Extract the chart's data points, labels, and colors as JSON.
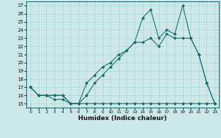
{
  "xlabel": "Humidex (Indice chaleur)",
  "bg_color": "#cce8e8",
  "grid_color": "#aad4d4",
  "line_color": "#1a6b6b",
  "xlim": [
    -0.5,
    23.5
  ],
  "ylim": [
    14.5,
    27.5
  ],
  "xticks": [
    0,
    1,
    2,
    3,
    4,
    5,
    6,
    7,
    8,
    9,
    10,
    11,
    12,
    13,
    14,
    15,
    16,
    17,
    18,
    19,
    20,
    21,
    22,
    23
  ],
  "yticks": [
    15,
    16,
    17,
    18,
    19,
    20,
    21,
    22,
    23,
    24,
    25,
    26,
    27
  ],
  "line1_x": [
    0,
    1,
    2,
    3,
    4,
    5,
    6,
    7,
    8,
    9,
    10,
    11,
    12,
    13,
    14,
    15,
    16,
    17,
    18,
    19,
    20,
    21,
    22,
    23
  ],
  "line1_y": [
    17,
    16,
    16,
    15.5,
    15.5,
    15,
    15,
    17.5,
    18.5,
    19.5,
    20,
    21,
    21.5,
    22.5,
    25.5,
    26.5,
    23,
    24,
    23.5,
    27,
    23,
    21,
    17.5,
    15
  ],
  "line2_x": [
    0,
    1,
    2,
    3,
    4,
    5,
    6,
    7,
    8,
    9,
    10,
    11,
    12,
    13,
    14,
    15,
    16,
    17,
    18,
    19,
    20,
    21,
    22,
    23
  ],
  "line2_y": [
    17,
    16,
    16,
    16,
    16,
    15,
    15,
    16,
    17.5,
    18.5,
    19.5,
    20.5,
    21.5,
    22.5,
    22.5,
    23,
    22,
    23.5,
    23,
    23,
    23,
    21,
    17.5,
    15
  ],
  "line3_x": [
    0,
    1,
    2,
    3,
    4,
    5,
    6,
    7,
    8,
    9,
    10,
    11,
    12,
    13,
    14,
    15,
    16,
    17,
    18,
    19,
    20,
    21,
    22,
    23
  ],
  "line3_y": [
    17,
    16,
    16,
    16,
    16,
    15,
    15,
    15,
    15,
    15,
    15,
    15,
    15,
    15,
    15,
    15,
    15,
    15,
    15,
    15,
    15,
    15,
    15,
    15
  ]
}
